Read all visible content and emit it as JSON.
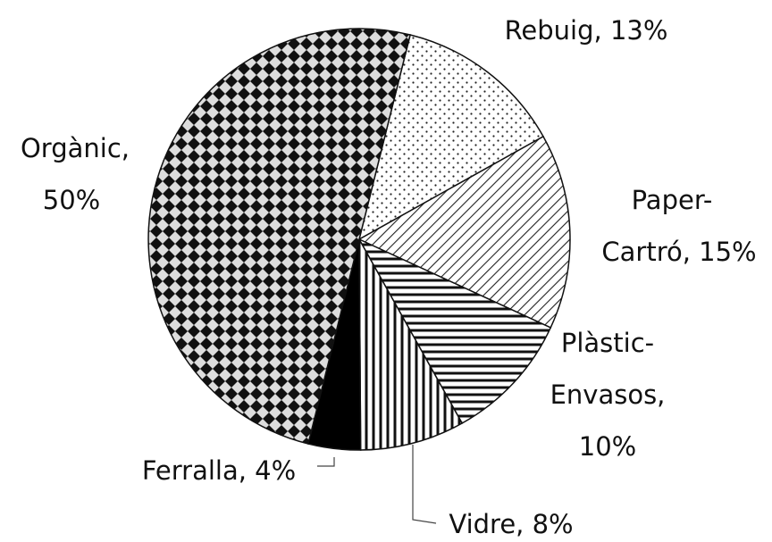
{
  "chart_data": {
    "type": "pie",
    "values": [
      13,
      15,
      10,
      8,
      4,
      50
    ],
    "value_labels": [
      [
        "Rebuig, 13%"
      ],
      [
        "Paper-",
        "Cartró, 15%"
      ],
      [
        "Plàstic-",
        "Envasos,",
        "10%"
      ],
      [
        "Vidre, 8%"
      ],
      [
        "Ferralla, 4%"
      ],
      [
        "Orgànic,",
        "50%"
      ]
    ]
  }
}
